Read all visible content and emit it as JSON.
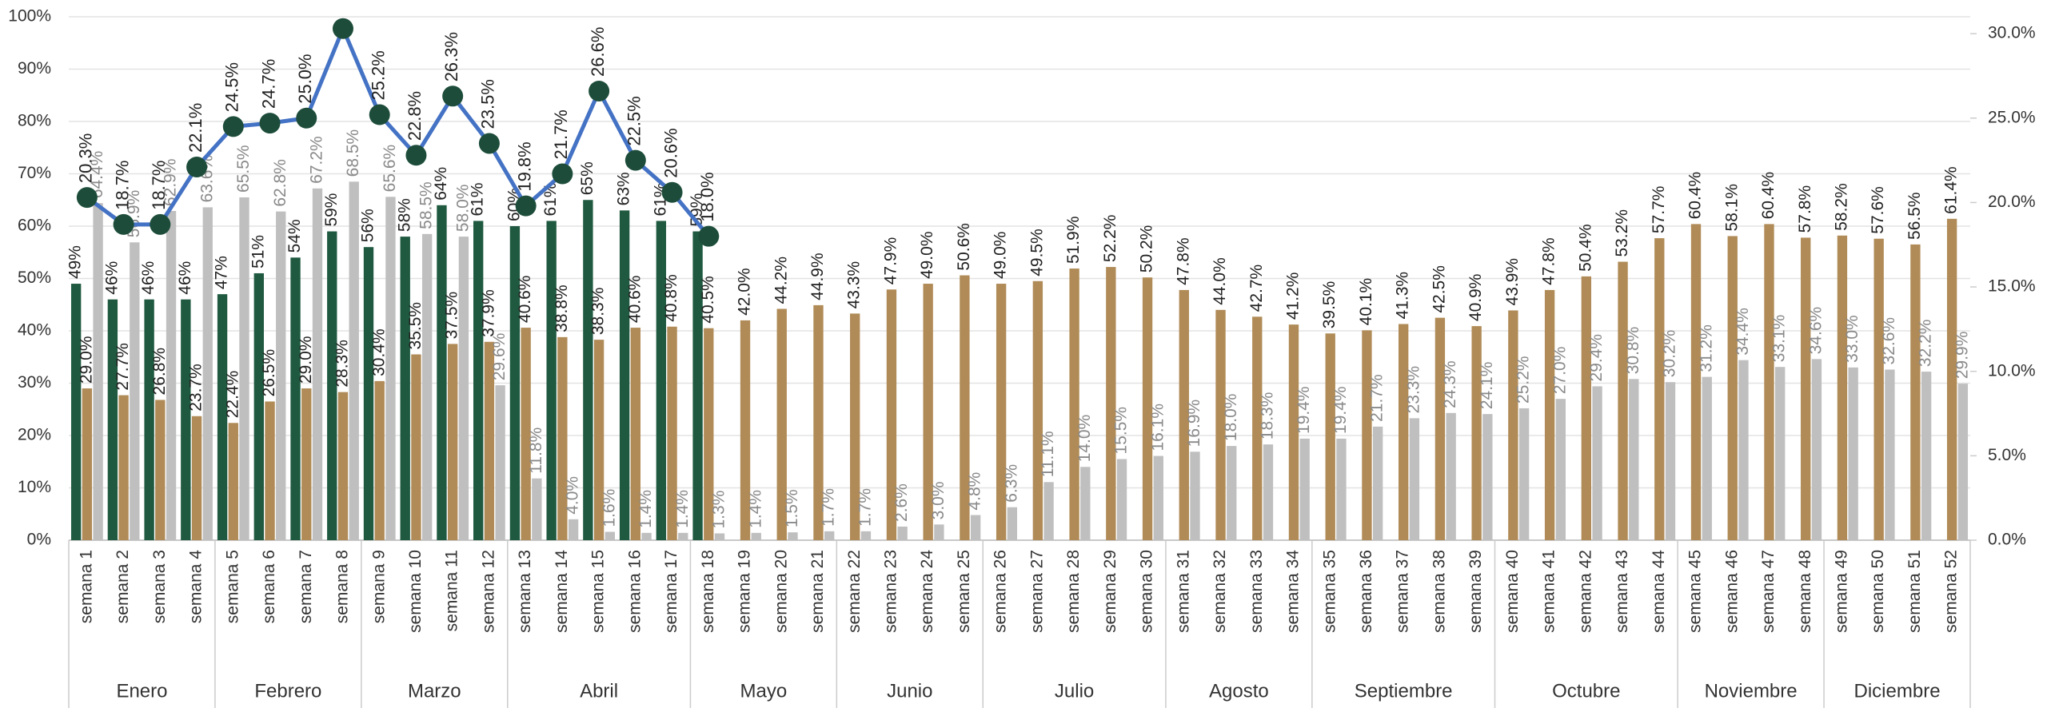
{
  "chart_data": {
    "type": "bar",
    "categories": [
      "semana 1",
      "semana 2",
      "semana 3",
      "semana 4",
      "semana 5",
      "semana 6",
      "semana 7",
      "semana 8",
      "semana 9",
      "semana 10",
      "semana 11",
      "semana 12",
      "semana 13",
      "semana 14",
      "semana 15",
      "semana 16",
      "semana 17",
      "semana 18",
      "semana 19",
      "semana 20",
      "semana 21",
      "semana 22",
      "semana 23",
      "semana 24",
      "semana 25",
      "semana 26",
      "semana 27",
      "semana 28",
      "semana 29",
      "semana 30",
      "semana 31",
      "semana 32",
      "semana 33",
      "semana 34",
      "semana 35",
      "semana 36",
      "semana 37",
      "semana 38",
      "semana 39",
      "semana 40",
      "semana 41",
      "semana 42",
      "semana 43",
      "semana 44",
      "semana 45",
      "semana 46",
      "semana 47",
      "semana 48",
      "semana 49",
      "semana 50",
      "semana 51",
      "semana 52"
    ],
    "groups": [
      {
        "label": "Enero",
        "span": 4
      },
      {
        "label": "Febrero",
        "span": 4
      },
      {
        "label": "Marzo",
        "span": 4
      },
      {
        "label": "Abril",
        "span": 5
      },
      {
        "label": "Mayo",
        "span": 4
      },
      {
        "label": "Junio",
        "span": 4
      },
      {
        "label": "Julio",
        "span": 5
      },
      {
        "label": "Agosto",
        "span": 4
      },
      {
        "label": "Septiembre",
        "span": 5
      },
      {
        "label": "Octubre",
        "span": 5
      },
      {
        "label": "Noviembre",
        "span": 4
      },
      {
        "label": "Diciembre",
        "span": 4
      }
    ],
    "ylim": [
      0,
      100
    ],
    "yticks": [
      {
        "value": 0,
        "label": "0%"
      },
      {
        "value": 10,
        "label": "10%"
      },
      {
        "value": 20,
        "label": "20%"
      },
      {
        "value": 30,
        "label": "30%"
      },
      {
        "value": 40,
        "label": "40%"
      },
      {
        "value": 50,
        "label": "50%"
      },
      {
        "value": 60,
        "label": "60%"
      },
      {
        "value": 70,
        "label": "70%"
      },
      {
        "value": 80,
        "label": "80%"
      },
      {
        "value": 90,
        "label": "90%"
      },
      {
        "value": 100,
        "label": "100%"
      }
    ],
    "y2lim": [
      0,
      31
    ],
    "y2ticks": [
      {
        "value": 0,
        "label": "0.0%"
      },
      {
        "value": 5,
        "label": "5.0%"
      },
      {
        "value": 10,
        "label": "10.0%"
      },
      {
        "value": 15,
        "label": "15.0%"
      },
      {
        "value": 20,
        "label": "20.0%"
      },
      {
        "value": 25,
        "label": "25.0%"
      },
      {
        "value": 30,
        "label": "30.0%"
      }
    ],
    "grid": true,
    "series": [
      {
        "type": "bar",
        "color": "#1f5940",
        "label_color": "#222222",
        "values": [
          49,
          46,
          46,
          46,
          47,
          51,
          54,
          59,
          56,
          58,
          64,
          61,
          60,
          61,
          65,
          63,
          61,
          59,
          null,
          null,
          null,
          null,
          null,
          null,
          null,
          null,
          null,
          null,
          null,
          null,
          null,
          null,
          null,
          null,
          null,
          null,
          null,
          null,
          null,
          null,
          null,
          null,
          null,
          null,
          null,
          null,
          null,
          null,
          null,
          null,
          null,
          null
        ],
        "value_labels": [
          "49%",
          "46%",
          "46%",
          "46%",
          "47%",
          "51%",
          "54%",
          "59%",
          "56%",
          "58%",
          "64%",
          "61%",
          "60%",
          "61%",
          "65%",
          "63%",
          "61%",
          "59%",
          null,
          null,
          null,
          null,
          null,
          null,
          null,
          null,
          null,
          null,
          null,
          null,
          null,
          null,
          null,
          null,
          null,
          null,
          null,
          null,
          null,
          null,
          null,
          null,
          null,
          null,
          null,
          null,
          null,
          null,
          null,
          null,
          null,
          null
        ]
      },
      {
        "type": "bar",
        "color": "#b08b57",
        "label_color": "#222222",
        "values": [
          29.0,
          27.7,
          26.8,
          23.7,
          22.4,
          26.5,
          29.0,
          28.3,
          30.4,
          35.5,
          37.5,
          37.9,
          40.6,
          38.8,
          38.3,
          40.6,
          40.8,
          40.5,
          42.0,
          44.2,
          44.9,
          43.3,
          47.9,
          49.0,
          50.6,
          49.0,
          49.5,
          51.9,
          52.2,
          50.2,
          47.8,
          44.0,
          42.7,
          41.2,
          39.5,
          40.1,
          41.3,
          42.5,
          40.9,
          43.9,
          47.8,
          50.4,
          53.2,
          57.7,
          60.4,
          58.1,
          60.4,
          57.8,
          58.2,
          57.6,
          56.5,
          61.4
        ],
        "value_labels": [
          "29.0%",
          "27.7%",
          "26.8%",
          "23.7%",
          "22.4%",
          "26.5%",
          "29.0%",
          "28.3%",
          "30.4%",
          "35.5%",
          "37.5%",
          "37.9%",
          "40.6%",
          "38.8%",
          "38.3%",
          "40.6%",
          "40.8%",
          "40.5%",
          "42.0%",
          "44.2%",
          "44.9%",
          "43.3%",
          "47.9%",
          "49.0%",
          "50.6%",
          "49.0%",
          "49.5%",
          "51.9%",
          "52.2%",
          "50.2%",
          "47.8%",
          "44.0%",
          "42.7%",
          "41.2%",
          "39.5%",
          "40.1%",
          "41.3%",
          "42.5%",
          "40.9%",
          "43.9%",
          "47.8%",
          "50.4%",
          "53.2%",
          "57.7%",
          "60.4%",
          "58.1%",
          "60.4%",
          "57.8%",
          "58.2%",
          "57.6%",
          "56.5%",
          "61.4%"
        ]
      },
      {
        "type": "bar",
        "color": "#bfbfbf",
        "label_color": "#8a8a8a",
        "values": [
          64.4,
          56.9,
          62.9,
          63.6,
          65.5,
          62.8,
          67.2,
          68.5,
          65.6,
          58.5,
          58.0,
          29.6,
          11.8,
          4.0,
          1.6,
          1.4,
          1.4,
          1.3,
          1.4,
          1.5,
          1.7,
          1.7,
          2.6,
          3.0,
          4.8,
          6.3,
          11.1,
          14.0,
          15.5,
          16.1,
          16.9,
          18.0,
          18.3,
          19.4,
          19.4,
          21.7,
          23.3,
          24.3,
          24.1,
          25.2,
          27.0,
          29.4,
          30.8,
          30.2,
          31.2,
          34.4,
          33.1,
          34.6,
          33.0,
          32.6,
          32.2,
          29.9
        ],
        "value_labels": [
          "64.4%",
          "56.9%",
          "62.9%",
          "63.6%",
          "65.5%",
          "62.8%",
          "67.2%",
          "68.5%",
          "65.6%",
          "58.5%",
          "58.0%",
          "29.6%",
          "11.8%",
          "4.0%",
          "1.6%",
          "1.4%",
          "1.4%",
          "1.3%",
          "1.4%",
          "1.5%",
          "1.7%",
          "1.7%",
          "2.6%",
          "3.0%",
          "4.8%",
          "6.3%",
          "11.1%",
          "14.0%",
          "15.5%",
          "16.1%",
          "16.9%",
          "18.0%",
          "18.3%",
          "19.4%",
          "19.4%",
          "21.7%",
          "23.3%",
          "24.3%",
          "24.1%",
          "25.2%",
          "27.0%",
          "29.4%",
          "30.8%",
          "30.2%",
          "31.2%",
          "34.4%",
          "33.1%",
          "34.6%",
          "33.0%",
          "32.6%",
          "32.2%",
          "29.9%"
        ]
      },
      {
        "type": "line",
        "axis": "y2",
        "color": "#4472c4",
        "marker_color": "#1d4d3a",
        "label_color": "#222222",
        "values": [
          20.3,
          18.7,
          18.7,
          22.1,
          24.5,
          24.7,
          25.0,
          30.3,
          25.2,
          22.8,
          26.3,
          23.5,
          19.8,
          21.7,
          26.6,
          22.5,
          20.6,
          18.0,
          null,
          null,
          null,
          null,
          null,
          null,
          null,
          null,
          null,
          null,
          null,
          null,
          null,
          null,
          null,
          null,
          null,
          null,
          null,
          null,
          null,
          null,
          null,
          null,
          null,
          null,
          null,
          null,
          null,
          null,
          null,
          null,
          null,
          null
        ],
        "value_labels": [
          "20.3%",
          "18.7%",
          "18.7%",
          "22.1%",
          "24.5%",
          "24.7%",
          "25.0%",
          null,
          "25.2%",
          "22.8%",
          "26.3%",
          "23.5%",
          "19.8%",
          "21.7%",
          "26.6%",
          "22.5%",
          "20.6%",
          "18.0%",
          null,
          null,
          null,
          null,
          null,
          null,
          null,
          null,
          null,
          null,
          null,
          null,
          null,
          null,
          null,
          null,
          null,
          null,
          null,
          null,
          null,
          null,
          null,
          null,
          null,
          null,
          null,
          null,
          null,
          null,
          null,
          null,
          null,
          null
        ]
      }
    ]
  }
}
